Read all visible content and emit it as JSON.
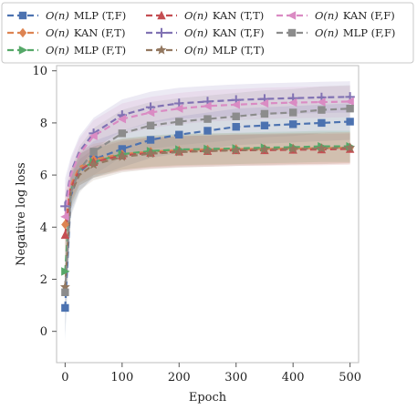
{
  "chart_data": {
    "type": "line",
    "xlabel": "Epoch",
    "ylabel": "Negative log loss",
    "xlim": [
      -15,
      515
    ],
    "ylim": [
      -1.2,
      10.2
    ],
    "xticks": [
      0,
      100,
      200,
      300,
      400,
      500
    ],
    "yticks": [
      0,
      2,
      4,
      6,
      8,
      10
    ],
    "grid": false,
    "legend_placement": "top",
    "x": [
      0,
      10,
      25,
      50,
      100,
      150,
      200,
      250,
      300,
      350,
      400,
      450,
      500
    ],
    "series": [
      {
        "name": "O(n) MLP (T,F)",
        "name_math": "O(n)",
        "name_rest": "MLP (T,F)",
        "color": "#4c72b0",
        "marker": "square",
        "values": [
          0.9,
          5.2,
          6.1,
          6.6,
          7.0,
          7.35,
          7.55,
          7.7,
          7.85,
          7.9,
          7.95,
          8.0,
          8.05
        ],
        "band": 0.7
      },
      {
        "name": "O(n) KAN (F,T)",
        "name_math": "O(n)",
        "name_rest": "KAN (F,T)",
        "color": "#dd8452",
        "marker": "diamond",
        "values": [
          4.1,
          5.6,
          6.3,
          6.6,
          6.8,
          6.9,
          6.95,
          6.98,
          7.0,
          7.0,
          7.02,
          7.03,
          7.05
        ],
        "band": 0.6
      },
      {
        "name": "O(n) MLP (F,T)",
        "name_math": "O(n)",
        "name_rest": "MLP (F,T)",
        "color": "#55a868",
        "marker": "triangle-right",
        "values": [
          2.3,
          5.4,
          6.2,
          6.5,
          6.8,
          6.92,
          6.98,
          7.0,
          7.02,
          7.05,
          7.07,
          7.1,
          7.1
        ],
        "band": 0.6
      },
      {
        "name": "O(n) KAN (T,T)",
        "name_math": "O(n)",
        "name_rest": "KAN (T,T)",
        "color": "#c44e52",
        "marker": "triangle-up",
        "values": [
          3.7,
          5.5,
          6.2,
          6.5,
          6.75,
          6.85,
          6.9,
          6.92,
          6.95,
          6.95,
          6.97,
          6.98,
          7.0
        ],
        "band": 0.6
      },
      {
        "name": "O(n) KAN (T,F)",
        "name_math": "O(n)",
        "name_rest": "KAN (T,F)",
        "color": "#8172b3",
        "marker": "plus",
        "values": [
          4.8,
          6.1,
          6.9,
          7.6,
          8.3,
          8.6,
          8.75,
          8.82,
          8.88,
          8.92,
          8.95,
          8.98,
          9.0
        ],
        "band": 0.6
      },
      {
        "name": "O(n) MLP (T,T)",
        "name_math": "O(n)",
        "name_rest": "MLP (T,T)",
        "color": "#937860",
        "marker": "star",
        "values": [
          1.7,
          5.3,
          6.0,
          6.4,
          6.7,
          6.82,
          6.88,
          6.92,
          6.95,
          6.98,
          7.0,
          7.02,
          7.05
        ],
        "band": 0.6
      },
      {
        "name": "O(n) KAN (F,F)",
        "name_math": "O(n)",
        "name_rest": "KAN (F,F)",
        "color": "#da8bc3",
        "marker": "triangle-left",
        "values": [
          4.4,
          6.0,
          6.8,
          7.5,
          8.15,
          8.4,
          8.55,
          8.65,
          8.7,
          8.75,
          8.78,
          8.8,
          8.82
        ],
        "band": 0.6
      },
      {
        "name": "O(n) MLP (F,F)",
        "name_math": "O(n)",
        "name_rest": "MLP (F,F)",
        "color": "#8c8c8c",
        "marker": "square",
        "values": [
          1.5,
          5.3,
          6.2,
          6.9,
          7.6,
          7.9,
          8.05,
          8.15,
          8.25,
          8.35,
          8.4,
          8.5,
          8.55
        ],
        "band": 0.9
      }
    ]
  }
}
